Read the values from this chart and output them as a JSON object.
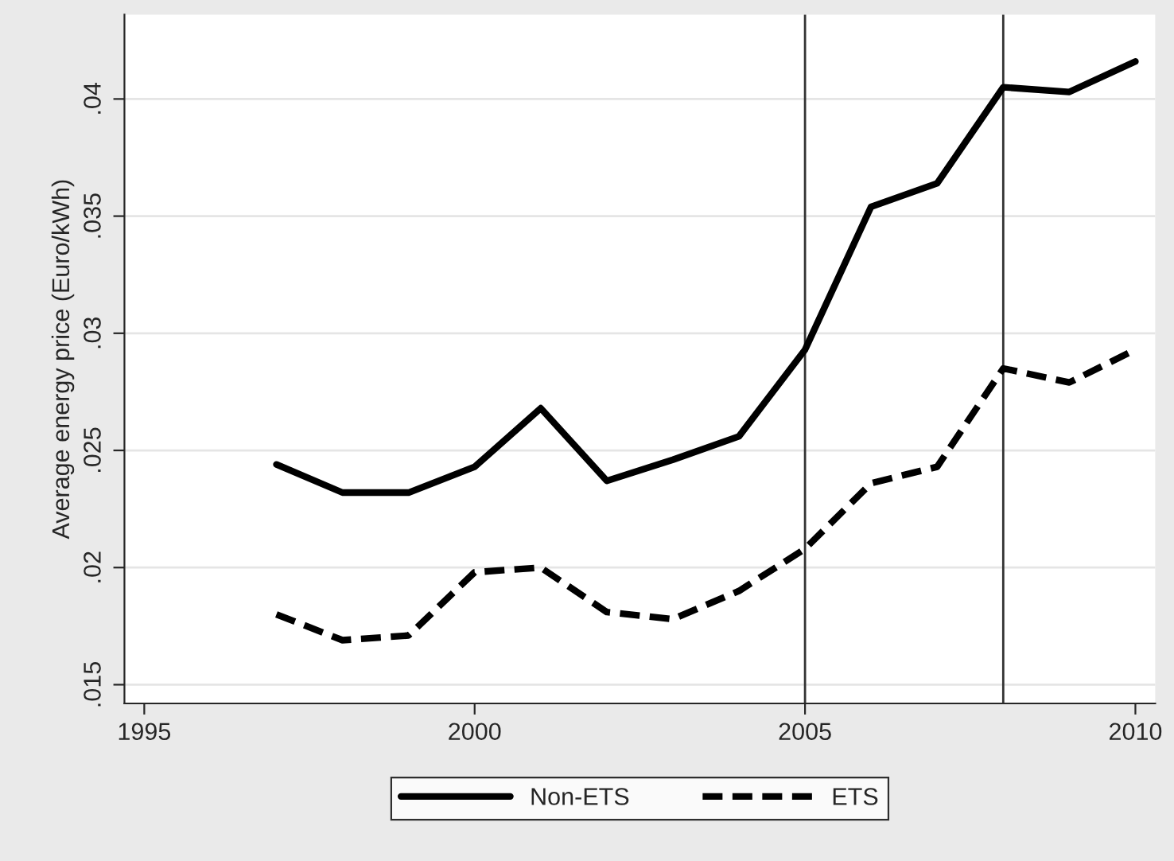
{
  "chart_data": {
    "type": "line",
    "ylabel": "Average energy price (Euro/kWh)",
    "x": [
      1997,
      1998,
      1999,
      2000,
      2001,
      2002,
      2003,
      2004,
      2005,
      2006,
      2007,
      2008,
      2009,
      2010
    ],
    "series": [
      {
        "name": "Non-ETS",
        "color": "#000000",
        "line_style": "solid",
        "values": [
          0.0244,
          0.0232,
          0.0232,
          0.0243,
          0.0268,
          0.0237,
          0.0246,
          0.0256,
          0.0293,
          0.0354,
          0.0364,
          0.0405,
          0.0403,
          0.0416
        ]
      },
      {
        "name": "ETS",
        "color": "#000000",
        "line_style": "dashed",
        "values": [
          0.018,
          0.0169,
          0.0171,
          0.0198,
          0.02,
          0.0181,
          0.0178,
          0.019,
          0.0208,
          0.0236,
          0.0243,
          0.0285,
          0.0279,
          0.0293
        ]
      }
    ],
    "xlim": [
      1994.7,
      2010.3
    ],
    "xticks": [
      1995,
      2000,
      2005,
      2010
    ],
    "ylim": [
      0.0142,
      0.0436
    ],
    "yticks": [
      {
        "value": 0.015,
        "label": ".015"
      },
      {
        "value": 0.02,
        "label": ".02"
      },
      {
        "value": 0.025,
        "label": ".025"
      },
      {
        "value": 0.03,
        "label": ".03"
      },
      {
        "value": 0.035,
        "label": ".035"
      },
      {
        "value": 0.04,
        "label": ".04"
      }
    ],
    "ref_lines": [
      {
        "axis": "x",
        "value": 2005,
        "color": "#333333"
      },
      {
        "axis": "x",
        "value": 2008,
        "color": "#333333"
      }
    ],
    "grid": "y",
    "legend": "bottom"
  }
}
